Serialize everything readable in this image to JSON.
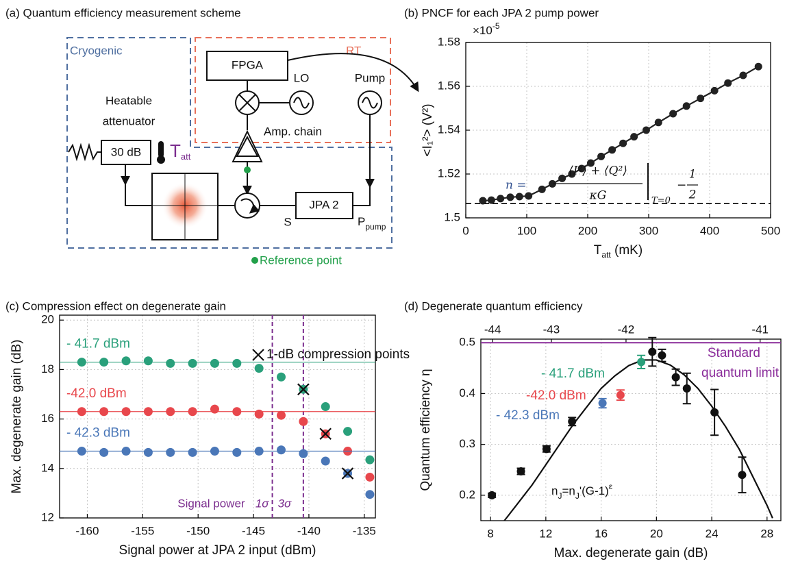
{
  "diagram": {
    "title": "(a) Quantum efficiency measurement scheme",
    "cryogenic": "Cryogenic",
    "rt": "RT",
    "fpga": "FPGA",
    "lo": "LO",
    "pump": "Pump",
    "heatable": "Heatable",
    "attenuator": "attenuator",
    "attenuation": "30 dB",
    "t": "T",
    "t_sub": "att",
    "amp_chain": "Amp. chain",
    "jpa": "JPA 2",
    "signal_port": "S",
    "pump_port": "P",
    "pump_port_sub": "pump",
    "reference_point": "Reference point"
  },
  "chart_data": [
    {
      "type": "line",
      "title": "(b) PNCF for each JPA 2 pump power",
      "multiplier": [
        "×10",
        "-5"
      ],
      "xlabel": [
        "T",
        "att",
        " (mK)"
      ],
      "ylabel": "<I₁²> (V²)",
      "x": [
        28,
        42,
        57,
        73,
        88,
        103,
        125,
        142,
        158,
        174,
        190,
        205,
        222,
        240,
        258,
        276,
        296,
        316,
        340,
        362,
        385,
        408,
        430,
        455,
        480
      ],
      "values": [
        1.5078,
        1.5081,
        1.5088,
        1.5094,
        1.5097,
        1.51,
        1.513,
        1.5155,
        1.518,
        1.52,
        1.5225,
        1.525,
        1.528,
        1.531,
        1.534,
        1.537,
        1.54,
        1.5435,
        1.5475,
        1.551,
        1.5545,
        1.558,
        1.5615,
        1.565,
        1.569
      ],
      "color": "#222222",
      "reference_line": 1.5065,
      "formula": {
        "lhs": "n =",
        "num": "⟨I²⟩ + ⟨Q²⟩",
        "den": "κG",
        "cond": "T=0",
        "minus": "−",
        "half_num": "1",
        "half_den": "2"
      },
      "xlim": [
        0,
        500
      ],
      "xticks": [
        0,
        100,
        200,
        300,
        400,
        500
      ],
      "ylim": [
        1.5,
        1.58
      ],
      "yticks": [
        1.5,
        1.52,
        1.54,
        1.56,
        1.58
      ],
      "grid": true
    },
    {
      "type": "scatter",
      "title": "(c) Compression effect on degenerate gain",
      "xlabel": "Signal power at JPA 2 input (dBm)",
      "ylabel": "Max. degenerate gain (dB)",
      "x": [
        -160.5,
        -158.5,
        -156.5,
        -154.5,
        -152.5,
        -150.5,
        -148.5,
        -146.5,
        -144.5,
        -142.5,
        -140.5,
        -138.5,
        -136.5,
        -134.5
      ],
      "series": [
        {
          "name": "- 41.7 dBm",
          "color": "#2aa07b",
          "level": 18.3,
          "values": [
            18.3,
            18.3,
            18.35,
            18.35,
            18.25,
            18.25,
            18.25,
            18.25,
            18.05,
            17.7,
            17.2,
            16.5,
            15.5,
            14.35
          ]
        },
        {
          "name": "-42.0 dBm",
          "color": "#e8474c",
          "level": 16.3,
          "values": [
            16.3,
            16.3,
            16.3,
            16.3,
            16.3,
            16.3,
            16.4,
            16.3,
            16.2,
            16.15,
            15.9,
            15.4,
            14.7,
            13.65
          ]
        },
        {
          "name": "- 42.3 dBm",
          "color": "#4a77b8",
          "level": 14.7,
          "values": [
            14.7,
            14.65,
            14.7,
            14.65,
            14.65,
            14.65,
            14.7,
            14.65,
            14.7,
            14.75,
            14.6,
            14.3,
            13.8,
            12.95
          ]
        }
      ],
      "compression": {
        "name": "1-dB compression points",
        "x": [
          -140.5,
          -138.5,
          -136.5
        ],
        "y": [
          17.2,
          15.4,
          13.8
        ]
      },
      "sigma_caption": "Signal power",
      "sigma_color": "#7b2d8e",
      "sigma_lines": [
        {
          "label": "1σ",
          "x": -143.3
        },
        {
          "label": "3σ",
          "x": -140.5
        }
      ],
      "xlim": [
        -162.5,
        -134
      ],
      "xticks": [
        -160,
        -155,
        -150,
        -145,
        -140,
        -135
      ],
      "ylim": [
        12,
        20.2
      ],
      "yticks": [
        12,
        14,
        16,
        18,
        20
      ],
      "grid": true
    },
    {
      "type": "errorbar",
      "title": "(d) Degenerate quantum efficiency",
      "xlabel": "Max. degenerate gain (dB)",
      "ylabel": "Quantum efficiency η",
      "x": [
        8.1,
        10.2,
        12.05,
        13.9,
        16.1,
        17.4,
        18.9,
        19.7,
        20.4,
        21.4,
        22.2,
        24.2,
        26.2
      ],
      "values": [
        0.2,
        0.247,
        0.291,
        0.345,
        0.381,
        0.397,
        0.462,
        0.482,
        0.475,
        0.432,
        0.41,
        0.363,
        0.24
      ],
      "errors": [
        0.004,
        0.006,
        0.006,
        0.008,
        0.009,
        0.01,
        0.013,
        0.028,
        0.012,
        0.016,
        0.03,
        0.045,
        0.035
      ],
      "colors": [
        "#111111",
        "#111111",
        "#111111",
        "#111111",
        "#4a77b8",
        "#e8474c",
        "#2aa07b",
        "#111111",
        "#111111",
        "#111111",
        "#111111",
        "#111111",
        "#111111"
      ],
      "labels": [
        {
          "text": "- 41.7 dBm",
          "color": "#2aa07b"
        },
        {
          "text": "-42.0 dBm",
          "color": "#e8474c"
        },
        {
          "text": "- 42.3 dBm",
          "color": "#4a77b8"
        }
      ],
      "fit": {
        "label": [
          "n",
          "J",
          "=n",
          "J",
          "'(G-1)",
          "ε"
        ],
        "x": [
          9,
          10,
          11,
          12,
          13,
          14,
          15,
          16,
          17,
          18,
          19,
          20,
          21,
          22,
          23,
          24,
          25,
          26,
          27,
          28,
          28.4
        ],
        "y": [
          0.15,
          0.185,
          0.22,
          0.26,
          0.3,
          0.34,
          0.375,
          0.41,
          0.435,
          0.455,
          0.466,
          0.466,
          0.456,
          0.437,
          0.41,
          0.375,
          0.335,
          0.29,
          0.235,
          0.18,
          0.155
        ]
      },
      "limit": {
        "value": 0.5,
        "label": [
          "Standard",
          "quantum limit"
        ],
        "color": "#8a2c9a"
      },
      "x2ticks": [
        {
          "value": 8.15,
          "label": "-44"
        },
        {
          "value": 12.4,
          "label": "-43"
        },
        {
          "value": 17.8,
          "label": "-42"
        },
        {
          "value": 27.5,
          "label": "-41"
        }
      ],
      "xlim": [
        7.3,
        29
      ],
      "xticks": [
        8,
        12,
        16,
        20,
        24,
        28
      ],
      "ylim": [
        0.15,
        0.507
      ],
      "yticks": [
        0.2,
        0.3,
        0.4,
        0.5
      ],
      "grid": true
    }
  ]
}
